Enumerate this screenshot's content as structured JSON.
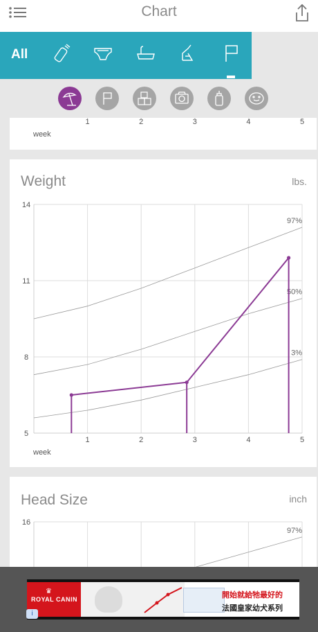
{
  "header": {
    "title": "Chart",
    "menu_icon": "list-menu-icon",
    "share_icon": "share-icon"
  },
  "categories": {
    "all_label": "All",
    "icons": [
      "bottle-icon",
      "diaper-icon",
      "bath-tub-icon",
      "breast-pump-icon",
      "flag-icon"
    ],
    "selected": "flag-icon",
    "accent_color": "#2aa6bb"
  },
  "filters": {
    "items": [
      "beach-umbrella-icon",
      "flag-icon",
      "blocks-icon",
      "camera-icon",
      "bottle-icon",
      "face-icon"
    ],
    "active": "beach-umbrella-icon",
    "active_color": "#8b3a94"
  },
  "top_card": {
    "x_ticks": [
      "1",
      "2",
      "3",
      "4",
      "5"
    ],
    "x_label": "week"
  },
  "chart_data": [
    {
      "type": "line",
      "title": "Weight",
      "unit": "lbs.",
      "xlabel": "week",
      "ylabel": "",
      "x_ticks": [
        "1",
        "2",
        "3",
        "4",
        "5"
      ],
      "y_ticks": [
        "14",
        "11",
        "8",
        "5"
      ],
      "xlim": [
        0,
        5
      ],
      "ylim": [
        5,
        14
      ],
      "grid": true,
      "percentile_curves": [
        {
          "name": "97%",
          "x": [
            0,
            1,
            2,
            3,
            4,
            5
          ],
          "y": [
            9.5,
            10.0,
            10.7,
            11.5,
            12.3,
            13.1
          ]
        },
        {
          "name": "50%",
          "x": [
            0,
            1,
            2,
            3,
            4,
            5
          ],
          "y": [
            7.3,
            7.7,
            8.3,
            9.0,
            9.7,
            10.3
          ]
        },
        {
          "name": "3%",
          "x": [
            0,
            1,
            2,
            3,
            4,
            5
          ],
          "y": [
            5.6,
            5.9,
            6.3,
            6.8,
            7.3,
            7.9
          ]
        }
      ],
      "series": [
        {
          "x": [
            0.7,
            2.85,
            4.75
          ],
          "y": [
            6.5,
            7.0,
            11.9
          ],
          "color": "#8b3a94"
        }
      ]
    },
    {
      "type": "line",
      "title": "Head Size",
      "unit": "inch",
      "xlabel": "",
      "ylabel": "",
      "y_ticks": [
        "16"
      ],
      "xlim": [
        0,
        5
      ],
      "ylim": [
        14.8,
        16
      ],
      "grid": true,
      "percentile_curves": [
        {
          "name": "97%",
          "x": [
            3,
            4,
            5
          ],
          "y": [
            14.95,
            15.3,
            15.65
          ]
        }
      ]
    }
  ],
  "ad": {
    "brand": "ROYAL CANIN",
    "line1": "開始就給牠最好的",
    "line2": "法國皇家幼犬系列",
    "info_icon": "ad-info-icon"
  }
}
